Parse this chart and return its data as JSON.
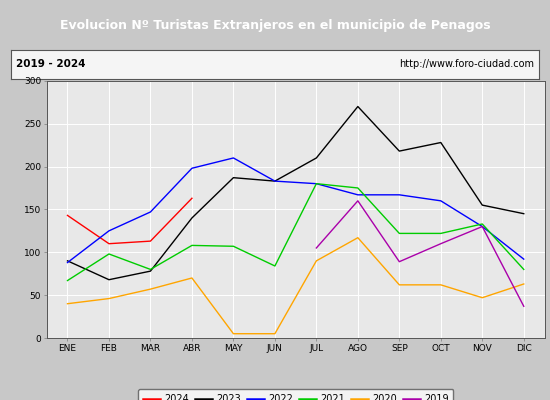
{
  "title": "Evolucion Nº Turistas Extranjeros en el municipio de Penagos",
  "subtitle_left": "2019 - 2024",
  "subtitle_right": "http://www.foro-ciudad.com",
  "months": [
    "ENE",
    "FEB",
    "MAR",
    "ABR",
    "MAY",
    "JUN",
    "JUL",
    "AGO",
    "SEP",
    "OCT",
    "NOV",
    "DIC"
  ],
  "series": {
    "2024": [
      143,
      110,
      113,
      163,
      null,
      null,
      null,
      null,
      null,
      null,
      null,
      null
    ],
    "2023": [
      90,
      68,
      78,
      140,
      187,
      183,
      210,
      270,
      218,
      228,
      155,
      145
    ],
    "2022": [
      88,
      125,
      147,
      198,
      210,
      183,
      180,
      167,
      167,
      160,
      130,
      92
    ],
    "2021": [
      67,
      98,
      80,
      108,
      107,
      84,
      180,
      175,
      122,
      122,
      133,
      80
    ],
    "2020": [
      40,
      46,
      57,
      70,
      5,
      5,
      90,
      117,
      62,
      62,
      47,
      63
    ],
    "2019": [
      null,
      null,
      null,
      null,
      null,
      null,
      105,
      160,
      89,
      110,
      130,
      37
    ]
  },
  "colors": {
    "2024": "#ff0000",
    "2023": "#000000",
    "2022": "#0000ff",
    "2021": "#00cc00",
    "2020": "#ffa500",
    "2019": "#aa00aa"
  },
  "ylim": [
    0,
    300
  ],
  "yticks": [
    0,
    50,
    100,
    150,
    200,
    250,
    300
  ],
  "background_plot": "#e8e8e8",
  "background_fig": "#c8c8c8",
  "title_bg": "#5b8dd9",
  "title_color": "#ffffff",
  "grid_color": "#ffffff",
  "subtitle_bg": "#f5f5f5",
  "border_color": "#555555"
}
